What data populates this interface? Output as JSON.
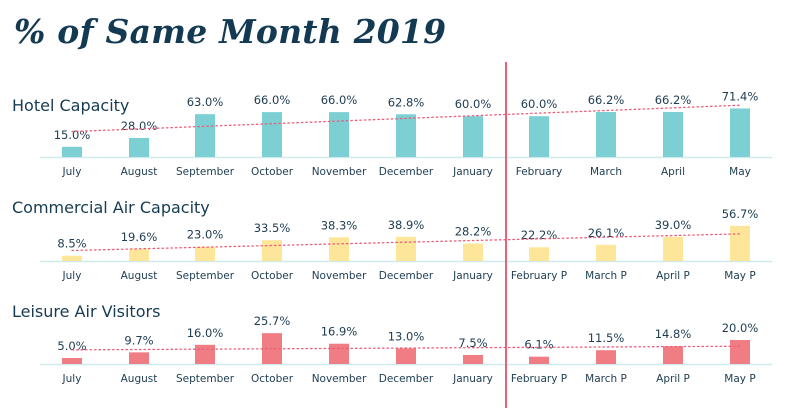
{
  "title": "% of Same Month 2019",
  "chart_data": [
    {
      "type": "bar",
      "title": "Hotel Capacity",
      "categories": [
        "July",
        "August",
        "September",
        "October",
        "November",
        "December",
        "January",
        "February",
        "March",
        "April",
        "May"
      ],
      "values": [
        15.0,
        28.0,
        63.0,
        66.0,
        66.0,
        62.8,
        60.0,
        60.0,
        66.2,
        66.2,
        71.4
      ],
      "value_labels": [
        "15.0%",
        "28.0%",
        "63.0%",
        "66.0%",
        "66.0%",
        "62.8%",
        "60.0%",
        "60.0%",
        "66.2%",
        "66.2%",
        "71.4%"
      ],
      "ylim": [
        0,
        100
      ],
      "color": "#7ccfd3",
      "trendline": true,
      "trendline_color": "#e9607a",
      "divider_after_category": "January"
    },
    {
      "type": "bar",
      "title": "Commercial Air Capacity",
      "categories": [
        "July",
        "August",
        "September",
        "October",
        "November",
        "December",
        "January",
        "February P",
        "March P",
        "April P",
        "May P"
      ],
      "values": [
        8.5,
        19.6,
        23.0,
        33.5,
        38.3,
        38.9,
        28.2,
        22.2,
        26.1,
        39.0,
        56.7
      ],
      "value_labels": [
        "8.5%",
        "19.6%",
        "23.0%",
        "33.5%",
        "38.3%",
        "38.9%",
        "28.2%",
        "22.2%",
        "26.1%",
        "39.0%",
        "56.7%"
      ],
      "ylim": [
        0,
        100
      ],
      "color": "#fde69a",
      "trendline": true,
      "trendline_color": "#e9607a",
      "divider_after_category": "January"
    },
    {
      "type": "bar",
      "title": "Leisure Air Visitors",
      "categories": [
        "July",
        "August",
        "September",
        "October",
        "November",
        "December",
        "January",
        "February P",
        "March P",
        "April P",
        "May P"
      ],
      "values": [
        5.0,
        9.7,
        16.0,
        25.7,
        16.9,
        13.0,
        7.5,
        6.1,
        11.5,
        14.8,
        20.0
      ],
      "value_labels": [
        "5.0%",
        "9.7%",
        "16.0%",
        "25.7%",
        "16.9%",
        "13.0%",
        "7.5%",
        "6.1%",
        "11.5%",
        "14.8%",
        "20.0%"
      ],
      "ylim": [
        0,
        100
      ],
      "color": "#f07c84",
      "trendline": true,
      "trendline_color": "#e9607a",
      "divider_after_category": "January"
    }
  ],
  "colors": {
    "title": "#133a52",
    "text": "#1d3c50",
    "axis": "#cfe9ec",
    "divider": "#e9607a"
  }
}
